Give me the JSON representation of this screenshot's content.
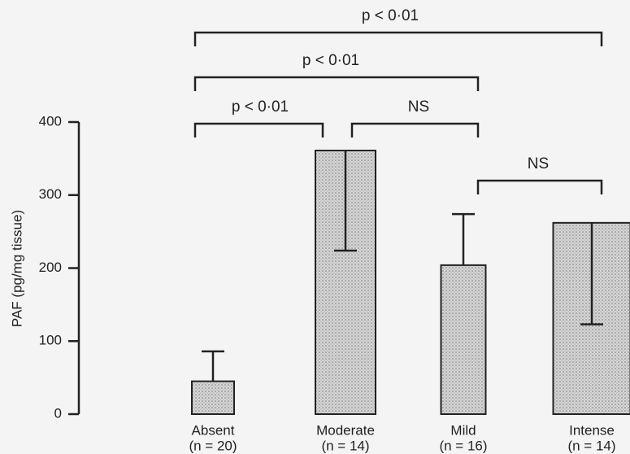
{
  "chart_data": {
    "type": "bar",
    "y_label": "PAF (pg/mg tissue)",
    "categories": [
      "Absent",
      "Moderate",
      "Mild",
      "Intense"
    ],
    "n_labels": [
      "(n = 20)",
      "(n = 14)",
      "(n = 16)",
      "(n = 14)"
    ],
    "values": [
      45,
      361,
      204,
      262
    ],
    "errors": [
      41,
      137,
      70,
      139
    ],
    "color": "#c8c8c8",
    "ylim": [
      0,
      400
    ],
    "yticks": [
      0,
      100,
      200,
      300,
      400
    ],
    "annotations": [
      "p < 0·01",
      "p < 0·01",
      "p < 0·01",
      "NS",
      "NS"
    ]
  }
}
